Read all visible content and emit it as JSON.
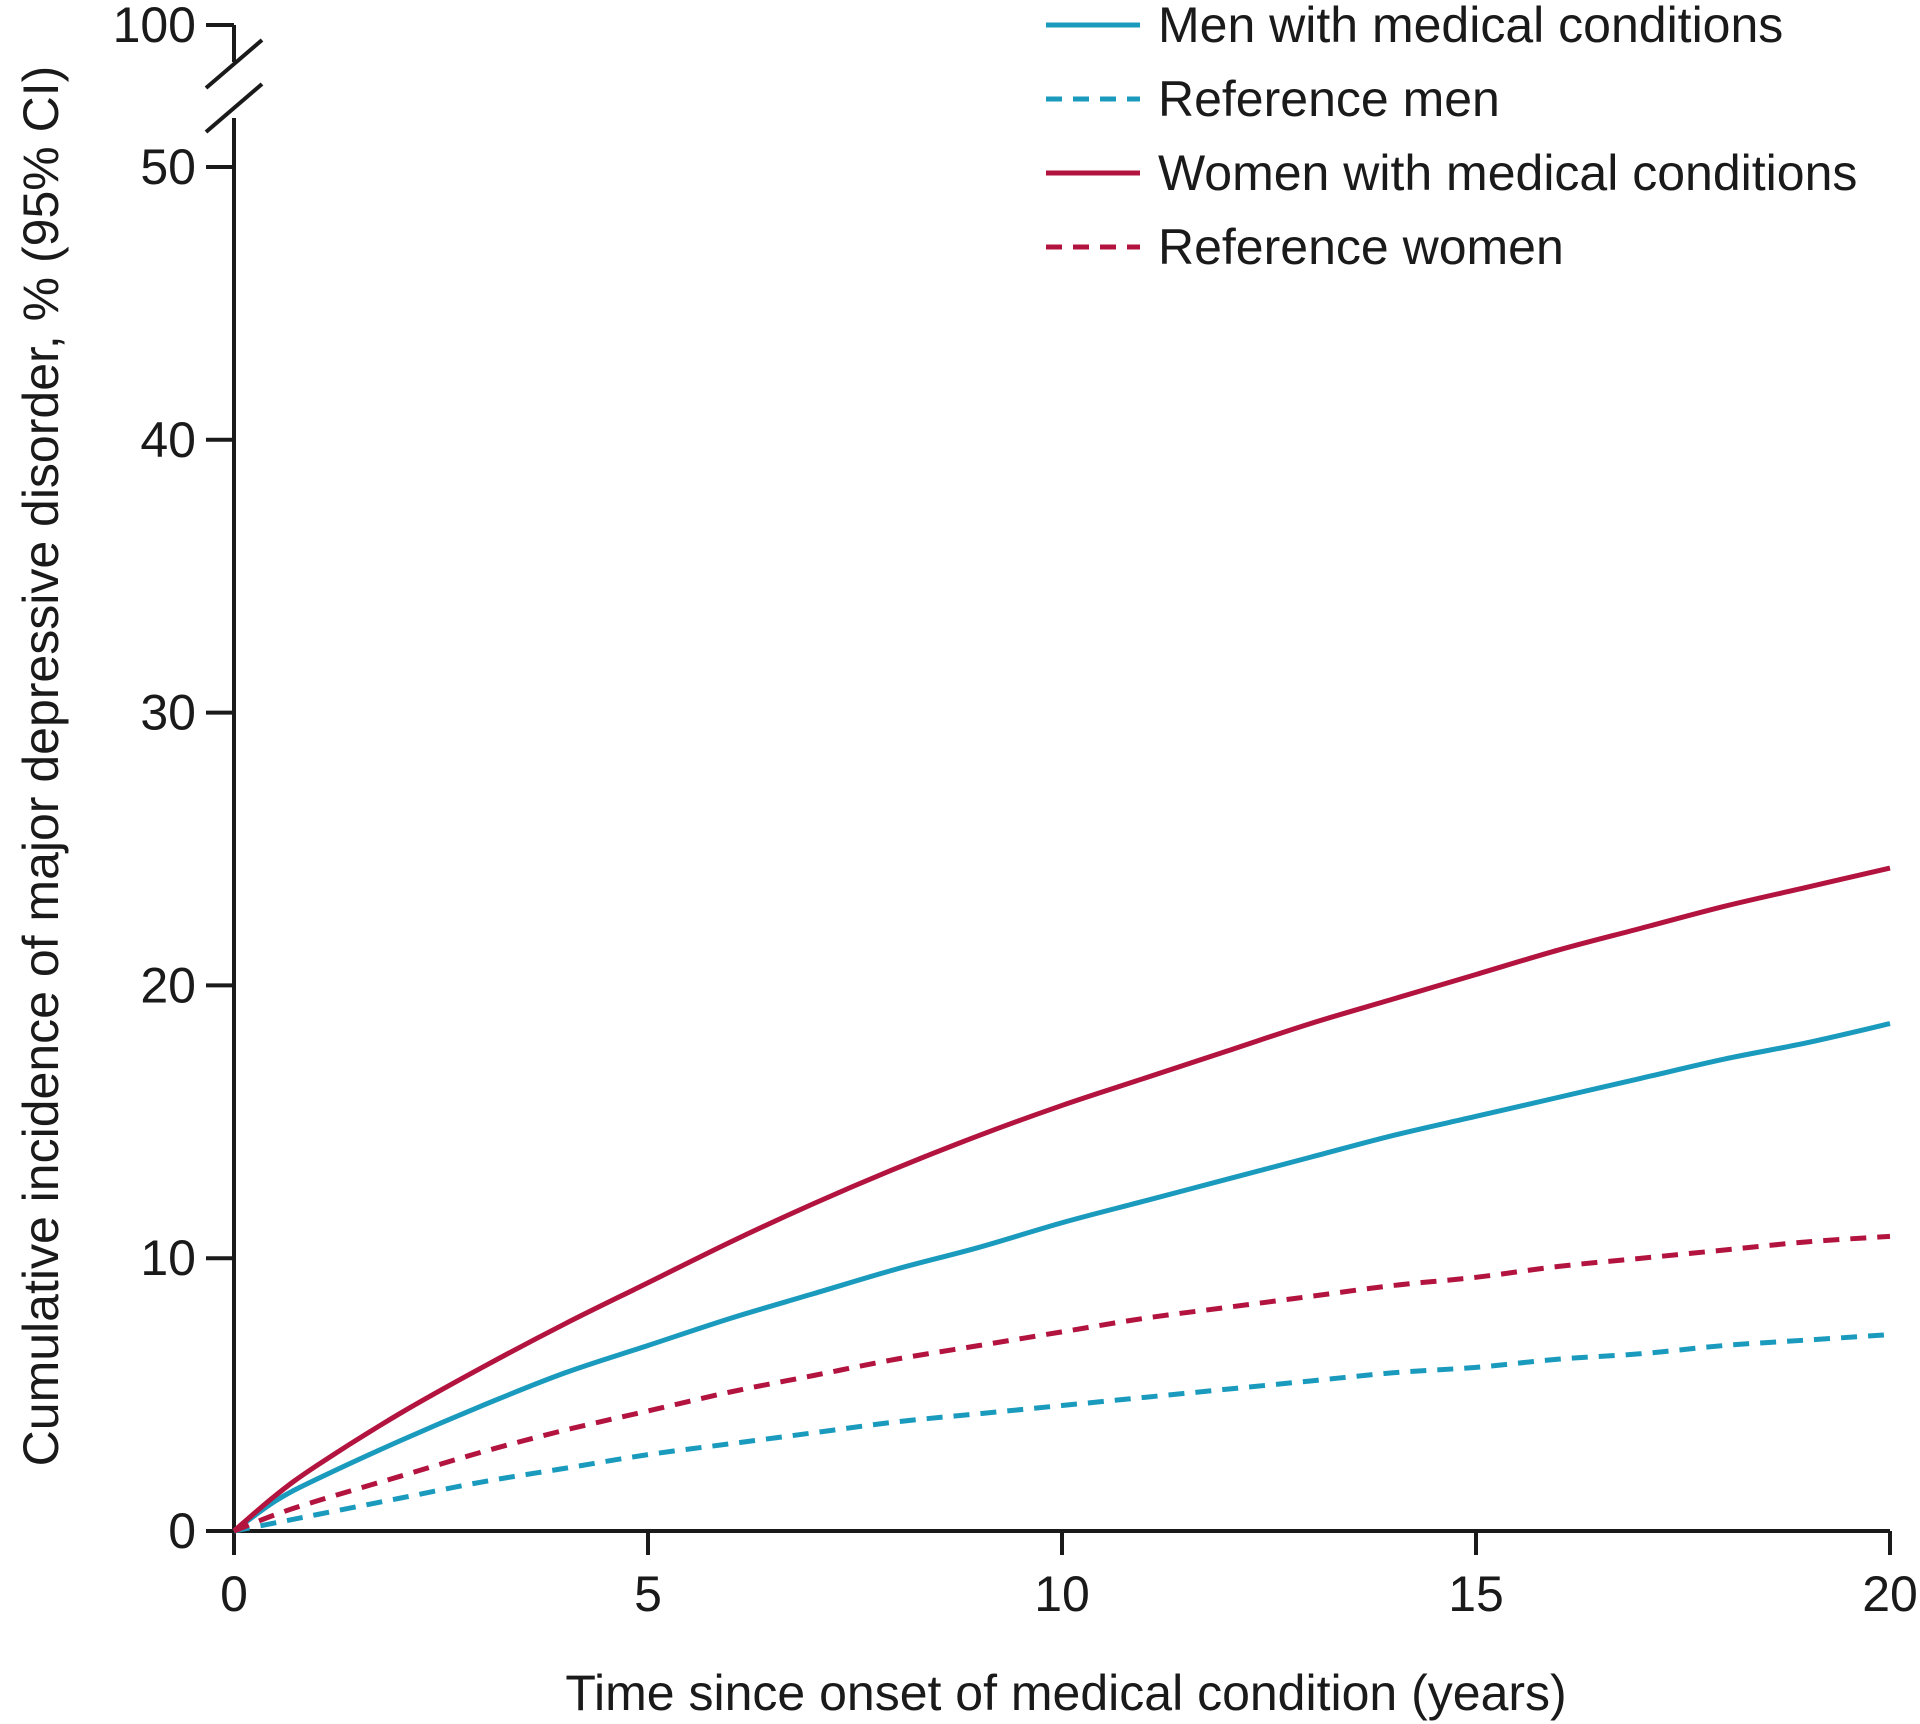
{
  "chart_data": {
    "type": "line",
    "title": "",
    "xlabel": "Time since onset of medical condition (years)",
    "ylabel": "Cumulative incidence of major depressive disorder, % (95% CI)",
    "xlim": [
      0,
      20
    ],
    "ylim": [
      0,
      50
    ],
    "y_break_top_value": 100,
    "xticks": [
      0,
      5,
      10,
      15,
      20
    ],
    "yticks": [
      0,
      10,
      20,
      30,
      40,
      50
    ],
    "grid": false,
    "legend_position": "top-right",
    "colors": {
      "men": "#1a9bbd",
      "women": "#b3143f",
      "axis": "#1a1a1a"
    },
    "x": [
      0,
      0.5,
      1,
      2,
      3,
      4,
      5,
      6,
      7,
      8,
      9,
      10,
      11,
      12,
      13,
      14,
      15,
      16,
      17,
      18,
      19,
      20
    ],
    "series": [
      {
        "name": "Men with medical conditions",
        "color": "#1a9bbd",
        "dash": "solid",
        "values": [
          0,
          1.1,
          1.9,
          3.3,
          4.6,
          5.8,
          6.8,
          7.8,
          8.7,
          9.6,
          10.4,
          11.3,
          12.1,
          12.9,
          13.7,
          14.5,
          15.2,
          15.9,
          16.6,
          17.3,
          17.9,
          18.6
        ]
      },
      {
        "name": "Reference men",
        "color": "#1a9bbd",
        "dash": "dashed",
        "values": [
          0,
          0.3,
          0.6,
          1.2,
          1.8,
          2.3,
          2.8,
          3.2,
          3.6,
          4.0,
          4.3,
          4.6,
          4.9,
          5.2,
          5.5,
          5.8,
          6.0,
          6.3,
          6.5,
          6.8,
          7.0,
          7.2
        ]
      },
      {
        "name": "Women with medical conditions",
        "color": "#b3143f",
        "dash": "solid",
        "values": [
          0,
          1.3,
          2.4,
          4.3,
          6.0,
          7.6,
          9.1,
          10.6,
          12.0,
          13.3,
          14.5,
          15.6,
          16.6,
          17.6,
          18.6,
          19.5,
          20.4,
          21.3,
          22.1,
          22.9,
          23.6,
          24.3
        ]
      },
      {
        "name": "Reference women",
        "color": "#b3143f",
        "dash": "dashed",
        "values": [
          0,
          0.6,
          1.1,
          2.0,
          2.9,
          3.7,
          4.4,
          5.1,
          5.7,
          6.3,
          6.8,
          7.3,
          7.8,
          8.2,
          8.6,
          9.0,
          9.3,
          9.7,
          10.0,
          10.3,
          10.6,
          10.8
        ]
      }
    ]
  }
}
